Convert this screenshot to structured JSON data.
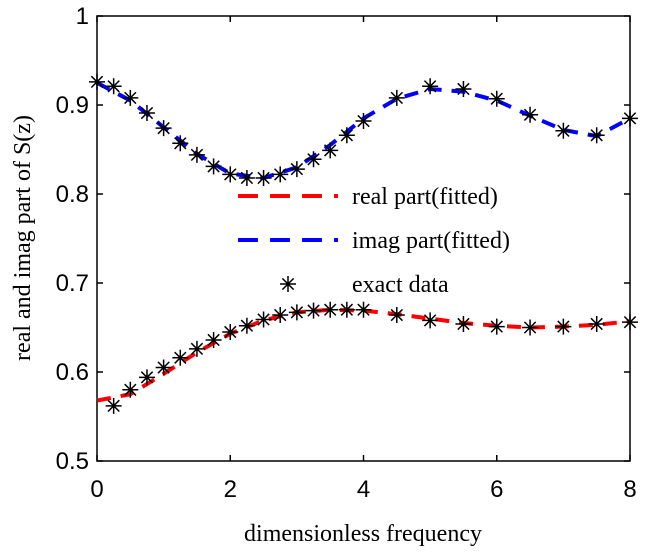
{
  "chart_data": {
    "type": "line",
    "xlabel": "dimensionless frequency",
    "ylabel": "real and imag part of S(z)",
    "xlim": [
      0,
      8
    ],
    "xticks": [
      0,
      2,
      4,
      6,
      8
    ],
    "ylim": [
      0.5,
      1
    ],
    "yticks": [
      0.5,
      0.6,
      0.7,
      0.8,
      0.9,
      1
    ],
    "legend": "center",
    "series": [
      {
        "name": "real part(fitted)",
        "color": "#ff0000",
        "style": "dashed",
        "x": [
          0,
          0.5,
          1,
          1.5,
          2,
          2.5,
          3,
          3.5,
          4,
          4.5,
          5,
          5.5,
          6,
          6.5,
          7,
          7.5,
          8
        ],
        "values": [
          0.568,
          0.575,
          0.598,
          0.622,
          0.643,
          0.658,
          0.667,
          0.67,
          0.669,
          0.665,
          0.66,
          0.655,
          0.652,
          0.65,
          0.651,
          0.653,
          0.657
        ]
      },
      {
        "name": "imag part(fitted)",
        "color": "#0000ff",
        "style": "dashed",
        "x": [
          0,
          0.5,
          1,
          1.5,
          2,
          2.5,
          3,
          3.5,
          4,
          4.5,
          5,
          5.5,
          6,
          6.5,
          7,
          7.5,
          8
        ],
        "values": [
          0.925,
          0.905,
          0.875,
          0.845,
          0.823,
          0.818,
          0.83,
          0.855,
          0.885,
          0.907,
          0.918,
          0.915,
          0.905,
          0.888,
          0.872,
          0.865,
          0.885
        ]
      },
      {
        "name": "exact data",
        "color": "#000000",
        "style": "marker",
        "x": [
          0.25,
          0.5,
          0.75,
          1,
          1.25,
          1.5,
          1.75,
          2,
          2.25,
          2.5,
          2.75,
          3,
          3.25,
          3.5,
          3.75,
          4,
          4.5,
          5,
          5.5,
          6,
          6.5,
          7,
          7.5,
          8,
          0,
          0.25,
          0.5,
          0.75,
          1,
          1.25,
          1.5,
          1.75,
          2,
          2.25,
          2.5,
          2.75,
          3,
          3.25,
          3.5,
          3.75,
          4,
          4.5,
          5,
          5.5,
          6,
          6.5,
          7,
          7.5,
          8
        ],
        "values": [
          0.562,
          0.58,
          0.594,
          0.605,
          0.616,
          0.626,
          0.636,
          0.645,
          0.652,
          0.659,
          0.664,
          0.667,
          0.669,
          0.67,
          0.67,
          0.67,
          0.664,
          0.658,
          0.654,
          0.651,
          0.65,
          0.651,
          0.654,
          0.656,
          0.926,
          0.921,
          0.908,
          0.891,
          0.874,
          0.857,
          0.844,
          0.831,
          0.822,
          0.818,
          0.818,
          0.822,
          0.828,
          0.839,
          0.849,
          0.866,
          0.882,
          0.908,
          0.921,
          0.918,
          0.907,
          0.889,
          0.871,
          0.866,
          0.885
        ]
      }
    ]
  }
}
